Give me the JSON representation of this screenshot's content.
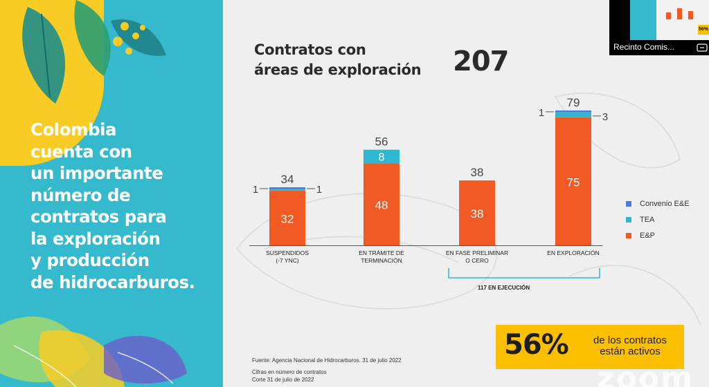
{
  "left_text": [
    "Colombia",
    "cuenta con",
    "un importante",
    "número de",
    "contratos para",
    "la exploración",
    "y producción",
    "de hidrocarburos."
  ],
  "title": {
    "line1": "Contratos con",
    "line2": "áreas de exploración",
    "total": "207"
  },
  "chart_data": {
    "type": "bar",
    "stacked": true,
    "categories": [
      [
        "SUSPENDIDOS",
        "(-7 YNC)"
      ],
      [
        "EN TRÁMITE DE",
        "TERMINACIÓN"
      ],
      [
        "EN FASE PRELIMINAR",
        "O CERO"
      ],
      [
        "EN EXPLORACIÓN"
      ]
    ],
    "series": [
      {
        "name": "E&P",
        "color": "#f15a24",
        "values": [
          32,
          48,
          38,
          75
        ]
      },
      {
        "name": "TEA",
        "color": "#2eb7d2",
        "values": [
          1,
          8,
          0,
          3
        ]
      },
      {
        "name": "Convenio E&E",
        "color": "#4c79e0",
        "values": [
          1,
          0,
          0,
          1
        ]
      }
    ],
    "totals": [
      "34",
      "56",
      "38",
      "79"
    ],
    "inner_labels": [
      "32",
      "48",
      "38",
      "75"
    ],
    "tea_inner_labels": [
      "",
      "8",
      "",
      ""
    ],
    "side_labels": [
      {
        "bar": 0,
        "left": "1",
        "right": "1"
      },
      {
        "bar": 3,
        "left": "1",
        "right": "3"
      }
    ],
    "bracket_label": "117 EN EJECUCIÓN",
    "ylim": [
      0,
      85
    ],
    "legend_order": [
      "Convenio E&E",
      "TEA",
      "E&P"
    ]
  },
  "callout": {
    "percent": "56%",
    "text": "de los contratos están activos"
  },
  "source": "Fuente: Agencia Nacional de Hidrocarburos. 31 de julio 2022",
  "notes": [
    "Cifras en número de contratos",
    "Corte 31 de julio de 2022"
  ],
  "watermark": "zoom",
  "participant": {
    "name": "Recinto Comis...",
    "badge": "56%"
  }
}
